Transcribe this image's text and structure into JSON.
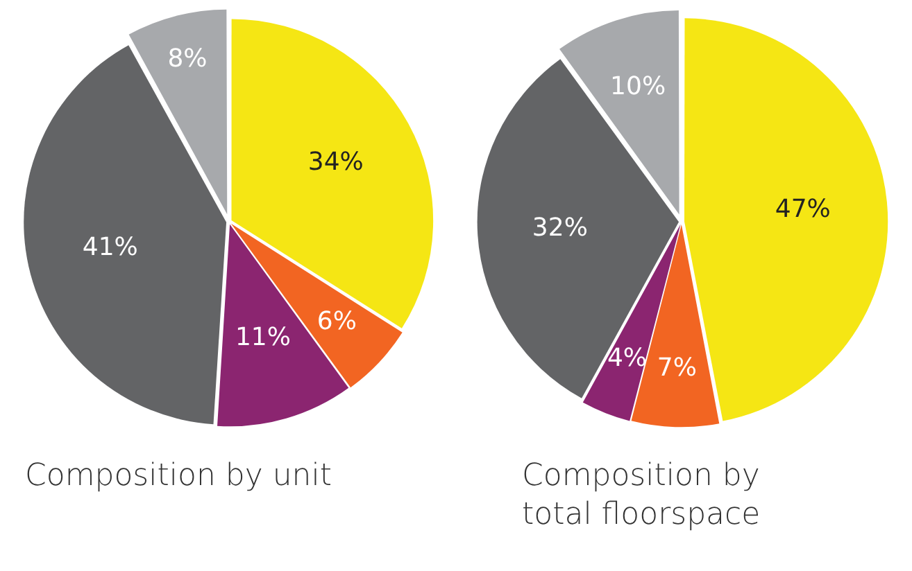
{
  "chart_data": [
    {
      "type": "pie",
      "title": "Composition by unit",
      "categories": [
        null,
        null,
        null,
        null,
        null
      ],
      "values": [
        34,
        6,
        11,
        41,
        8
      ],
      "value_labels": [
        "34%",
        "6%",
        "11%",
        "41%",
        "8%"
      ],
      "colors": [
        "#f5e614",
        "#f26522",
        "#8b2570",
        "#636466",
        "#a7a9ac"
      ]
    },
    {
      "type": "pie",
      "title": "Composition by total  floorspace",
      "categories": [
        null,
        null,
        null,
        null,
        null
      ],
      "values": [
        47,
        7,
        4,
        32,
        10
      ],
      "value_labels": [
        "47%",
        "7%",
        "4%",
        "32%",
        "10%"
      ],
      "colors": [
        "#f5e614",
        "#f26522",
        "#8b2570",
        "#636466",
        "#a7a9ac"
      ]
    }
  ]
}
